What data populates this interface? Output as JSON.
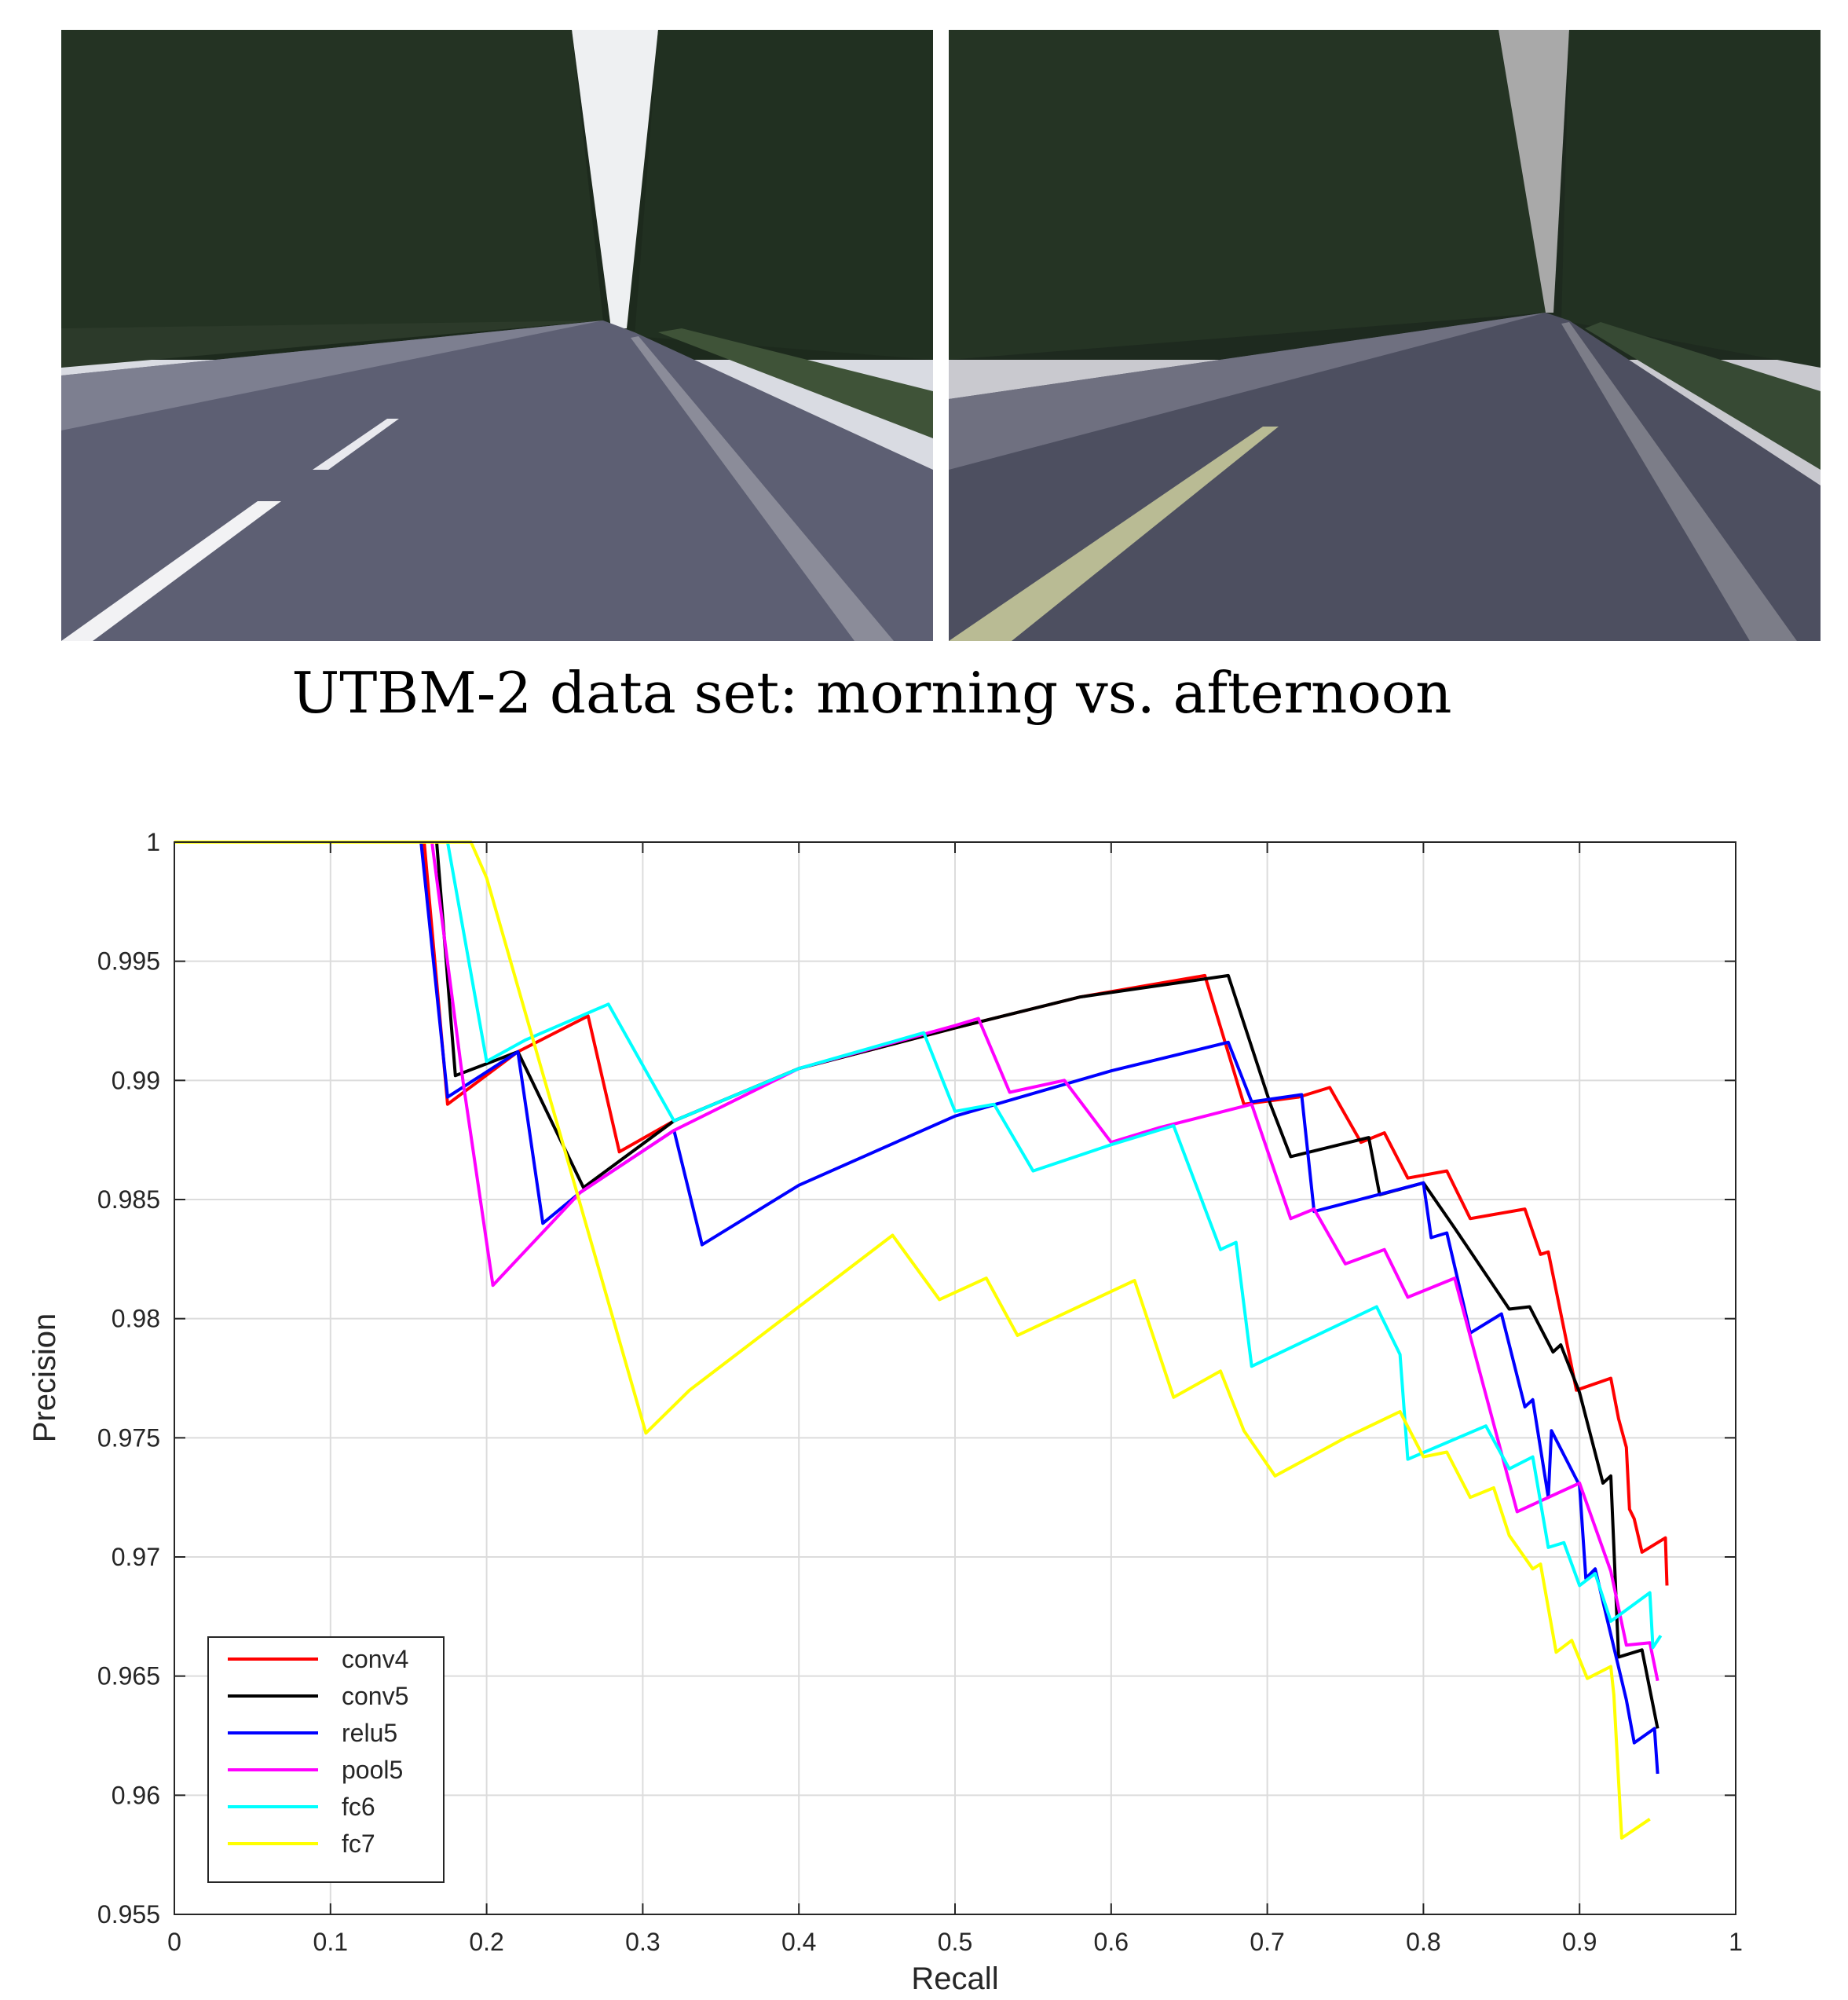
{
  "figure": {
    "photo_left": "road-scene-morning",
    "photo_right": "road-scene-afternoon",
    "caption": "UTBM-2 data set: morning vs. afternoon"
  },
  "chart_data": {
    "type": "line",
    "xlabel": "Recall",
    "ylabel": "Precision",
    "xlim": [
      0,
      1
    ],
    "ylim": [
      0.955,
      1
    ],
    "xticks": [
      0,
      0.1,
      0.2,
      0.3,
      0.4,
      0.5,
      0.6,
      0.7,
      0.8,
      0.9,
      1
    ],
    "xtick_labels": [
      "0",
      "0.1",
      "0.2",
      "0.3",
      "0.4",
      "0.5",
      "0.6",
      "0.7",
      "0.8",
      "0.9",
      "1"
    ],
    "yticks": [
      0.955,
      0.96,
      0.965,
      0.97,
      0.975,
      0.98,
      0.985,
      0.99,
      0.995,
      1
    ],
    "ytick_labels": [
      "0.955",
      "0.96",
      "0.965",
      "0.97",
      "0.975",
      "0.98",
      "0.985",
      "0.99",
      "0.995",
      "1"
    ],
    "grid": true,
    "legend_position": "bottom-left",
    "series": [
      {
        "name": "conv4",
        "color": "#ff0000",
        "points": [
          [
            0,
            1
          ],
          [
            0.16,
            1
          ],
          [
            0.175,
            0.989
          ],
          [
            0.22,
            0.9912
          ],
          [
            0.265,
            0.9927
          ],
          [
            0.285,
            0.987
          ],
          [
            0.32,
            0.9883
          ],
          [
            0.4,
            0.9905
          ],
          [
            0.5,
            0.9922
          ],
          [
            0.58,
            0.9935
          ],
          [
            0.66,
            0.9944
          ],
          [
            0.685,
            0.989
          ],
          [
            0.72,
            0.9893
          ],
          [
            0.74,
            0.9897
          ],
          [
            0.76,
            0.9874
          ],
          [
            0.775,
            0.9878
          ],
          [
            0.79,
            0.9859
          ],
          [
            0.815,
            0.9862
          ],
          [
            0.83,
            0.9842
          ],
          [
            0.865,
            0.9846
          ],
          [
            0.875,
            0.9827
          ],
          [
            0.88,
            0.9828
          ],
          [
            0.898,
            0.977
          ],
          [
            0.92,
            0.9775
          ],
          [
            0.925,
            0.9758
          ],
          [
            0.93,
            0.9746
          ],
          [
            0.932,
            0.972
          ],
          [
            0.935,
            0.9716
          ],
          [
            0.94,
            0.9702
          ],
          [
            0.955,
            0.9708
          ],
          [
            0.956,
            0.9688
          ]
        ]
      },
      {
        "name": "conv5",
        "color": "#000000",
        "points": [
          [
            0,
            1
          ],
          [
            0.168,
            1
          ],
          [
            0.18,
            0.9902
          ],
          [
            0.22,
            0.9912
          ],
          [
            0.262,
            0.9855
          ],
          [
            0.32,
            0.9883
          ],
          [
            0.4,
            0.9905
          ],
          [
            0.5,
            0.9922
          ],
          [
            0.58,
            0.9935
          ],
          [
            0.675,
            0.9944
          ],
          [
            0.702,
            0.989
          ],
          [
            0.715,
            0.9868
          ],
          [
            0.765,
            0.9876
          ],
          [
            0.772,
            0.9852
          ],
          [
            0.8,
            0.9857
          ],
          [
            0.82,
            0.9838
          ],
          [
            0.855,
            0.9804
          ],
          [
            0.868,
            0.9805
          ],
          [
            0.883,
            0.9786
          ],
          [
            0.888,
            0.9789
          ],
          [
            0.9,
            0.9769
          ],
          [
            0.915,
            0.9731
          ],
          [
            0.92,
            0.9734
          ],
          [
            0.925,
            0.9658
          ],
          [
            0.94,
            0.9661
          ],
          [
            0.95,
            0.9628
          ]
        ]
      },
      {
        "name": "relu5",
        "color": "#0000ff",
        "points": [
          [
            0,
            1
          ],
          [
            0.158,
            1
          ],
          [
            0.175,
            0.9893
          ],
          [
            0.22,
            0.9912
          ],
          [
            0.236,
            0.984
          ],
          [
            0.26,
            0.9853
          ],
          [
            0.32,
            0.9879
          ],
          [
            0.338,
            0.9831
          ],
          [
            0.4,
            0.9856
          ],
          [
            0.5,
            0.9885
          ],
          [
            0.6,
            0.9904
          ],
          [
            0.675,
            0.9916
          ],
          [
            0.69,
            0.9891
          ],
          [
            0.722,
            0.9894
          ],
          [
            0.73,
            0.9845
          ],
          [
            0.8,
            0.9857
          ],
          [
            0.805,
            0.9834
          ],
          [
            0.815,
            0.9836
          ],
          [
            0.83,
            0.9794
          ],
          [
            0.85,
            0.9802
          ],
          [
            0.865,
            0.9763
          ],
          [
            0.87,
            0.9766
          ],
          [
            0.88,
            0.9725
          ],
          [
            0.882,
            0.9753
          ],
          [
            0.9,
            0.973
          ],
          [
            0.904,
            0.9691
          ],
          [
            0.91,
            0.9695
          ],
          [
            0.93,
            0.964
          ],
          [
            0.935,
            0.9622
          ],
          [
            0.948,
            0.9628
          ],
          [
            0.95,
            0.9609
          ]
        ]
      },
      {
        "name": "pool5",
        "color": "#ff00ff",
        "points": [
          [
            0,
            1
          ],
          [
            0.165,
            1
          ],
          [
            0.185,
            0.9899
          ],
          [
            0.204,
            0.9814
          ],
          [
            0.26,
            0.9853
          ],
          [
            0.32,
            0.9879
          ],
          [
            0.4,
            0.9905
          ],
          [
            0.5,
            0.9923
          ],
          [
            0.515,
            0.9926
          ],
          [
            0.535,
            0.9895
          ],
          [
            0.57,
            0.99
          ],
          [
            0.6,
            0.9874
          ],
          [
            0.63,
            0.988
          ],
          [
            0.69,
            0.989
          ],
          [
            0.715,
            0.9842
          ],
          [
            0.73,
            0.9846
          ],
          [
            0.75,
            0.9823
          ],
          [
            0.775,
            0.9829
          ],
          [
            0.79,
            0.9809
          ],
          [
            0.82,
            0.9817
          ],
          [
            0.86,
            0.9719
          ],
          [
            0.9,
            0.9731
          ],
          [
            0.92,
            0.9694
          ],
          [
            0.93,
            0.9663
          ],
          [
            0.945,
            0.9664
          ],
          [
            0.95,
            0.9648
          ]
        ]
      },
      {
        "name": "fc6",
        "color": "#00ffff",
        "points": [
          [
            0,
            1
          ],
          [
            0.175,
            1
          ],
          [
            0.2,
            0.9908
          ],
          [
            0.225,
            0.9917
          ],
          [
            0.278,
            0.9932
          ],
          [
            0.32,
            0.9883
          ],
          [
            0.4,
            0.9905
          ],
          [
            0.48,
            0.992
          ],
          [
            0.5,
            0.9887
          ],
          [
            0.525,
            0.989
          ],
          [
            0.55,
            0.9862
          ],
          [
            0.6,
            0.9873
          ],
          [
            0.64,
            0.9881
          ],
          [
            0.67,
            0.9829
          ],
          [
            0.68,
            0.9832
          ],
          [
            0.69,
            0.978
          ],
          [
            0.77,
            0.9805
          ],
          [
            0.785,
            0.9785
          ],
          [
            0.79,
            0.9741
          ],
          [
            0.84,
            0.9755
          ],
          [
            0.855,
            0.9737
          ],
          [
            0.87,
            0.9742
          ],
          [
            0.88,
            0.9704
          ],
          [
            0.89,
            0.9706
          ],
          [
            0.9,
            0.9688
          ],
          [
            0.91,
            0.9693
          ],
          [
            0.92,
            0.9673
          ],
          [
            0.945,
            0.9685
          ],
          [
            0.947,
            0.9662
          ],
          [
            0.952,
            0.9667
          ]
        ]
      },
      {
        "name": "fc7",
        "color": "#ffff00",
        "points": [
          [
            0,
            1
          ],
          [
            0.19,
            1
          ],
          [
            0.2,
            0.9985
          ],
          [
            0.302,
            0.9752
          ],
          [
            0.33,
            0.977
          ],
          [
            0.4,
            0.9805
          ],
          [
            0.46,
            0.9835
          ],
          [
            0.49,
            0.9808
          ],
          [
            0.52,
            0.9817
          ],
          [
            0.54,
            0.9793
          ],
          [
            0.615,
            0.9816
          ],
          [
            0.64,
            0.9767
          ],
          [
            0.67,
            0.9778
          ],
          [
            0.685,
            0.9753
          ],
          [
            0.705,
            0.9734
          ],
          [
            0.75,
            0.975
          ],
          [
            0.785,
            0.9761
          ],
          [
            0.8,
            0.9742
          ],
          [
            0.815,
            0.9744
          ],
          [
            0.83,
            0.9725
          ],
          [
            0.845,
            0.9729
          ],
          [
            0.855,
            0.9709
          ],
          [
            0.87,
            0.9695
          ],
          [
            0.875,
            0.9697
          ],
          [
            0.885,
            0.966
          ],
          [
            0.895,
            0.9665
          ],
          [
            0.905,
            0.9649
          ],
          [
            0.92,
            0.9654
          ],
          [
            0.922,
            0.9642
          ],
          [
            0.927,
            0.9582
          ],
          [
            0.945,
            0.959
          ]
        ]
      }
    ]
  }
}
